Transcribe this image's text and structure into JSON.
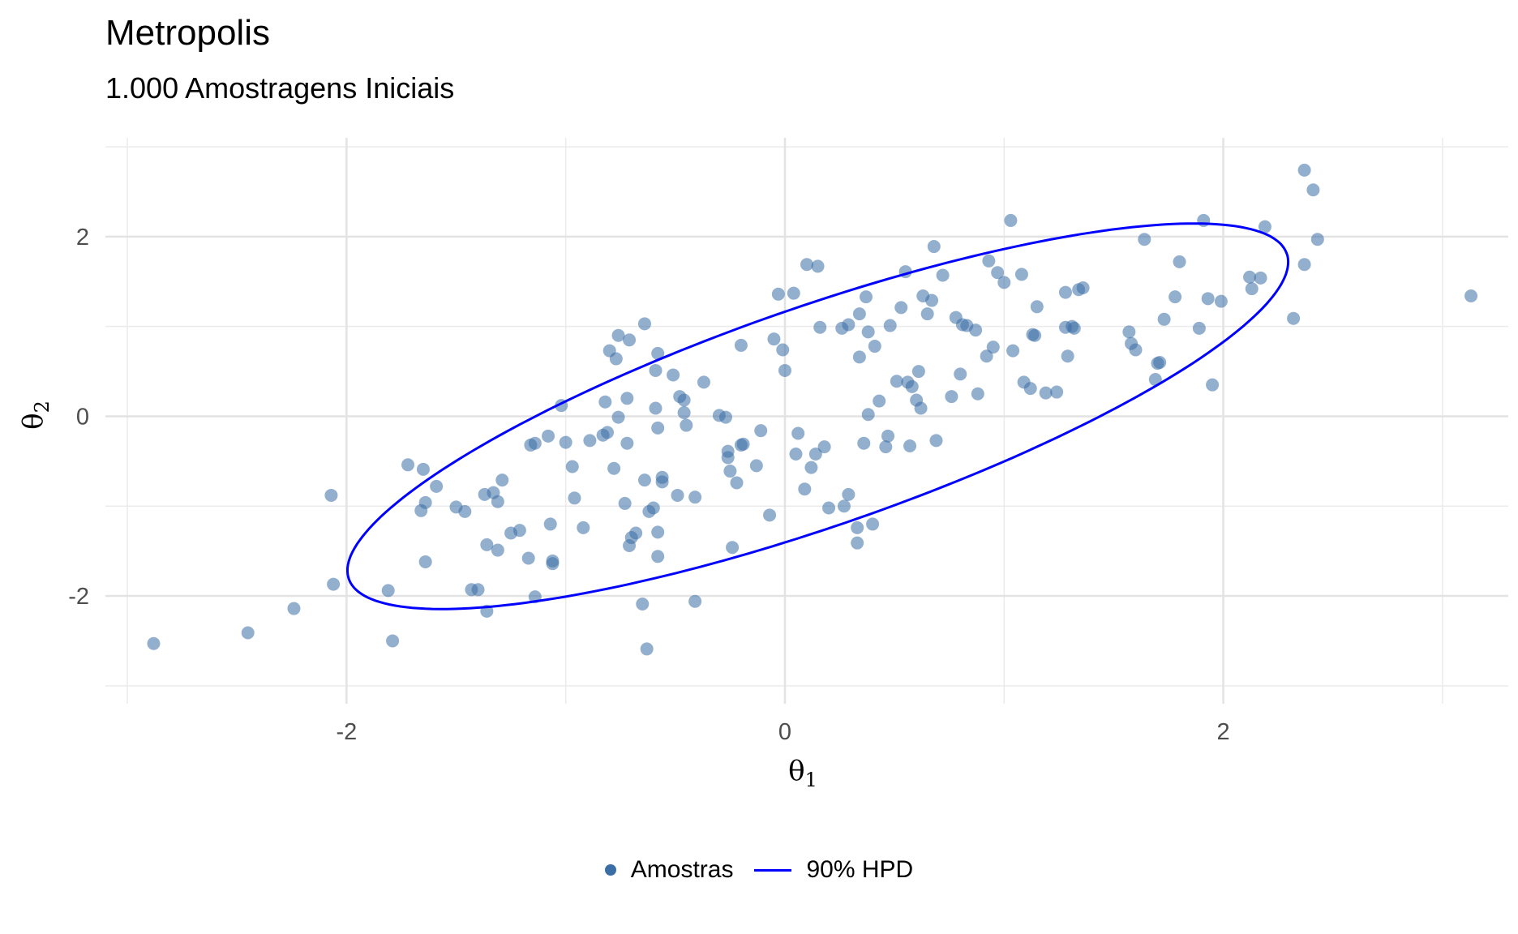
{
  "chart_data": {
    "type": "scatter",
    "title": "Metropolis",
    "subtitle": "1.000 Amostragens Iniciais",
    "xlabel": "θ",
    "xlabel_sub": "1",
    "ylabel": "θ",
    "ylabel_sub": "2",
    "xlim": [
      -3.1,
      3.3
    ],
    "ylim": [
      -3.2,
      3.1
    ],
    "x_ticks": [
      -2,
      0,
      2
    ],
    "x_tick_labels": [
      "-2",
      "0",
      "2"
    ],
    "y_ticks": [
      -2,
      0,
      2
    ],
    "y_tick_labels": [
      "-2",
      "0",
      "2"
    ],
    "grid": true,
    "legend_position": "bottom",
    "legend": [
      {
        "name": "Amostras",
        "kind": "point",
        "color": "#3a6ea5"
      },
      {
        "name": "90% HPD",
        "kind": "line",
        "color": "#0000ff"
      }
    ],
    "series": [
      {
        "name": "Amostras",
        "color": "#3a6ea5",
        "points": [
          [
            -2.88,
            -2.53
          ],
          [
            -2.45,
            -2.41
          ],
          [
            -2.24,
            -2.14
          ],
          [
            -2.07,
            -0.88
          ],
          [
            -2.06,
            -1.87
          ],
          [
            -1.81,
            -1.94
          ],
          [
            -1.79,
            -2.5
          ],
          [
            -1.72,
            -0.54
          ],
          [
            -1.66,
            -1.05
          ],
          [
            -1.65,
            -0.59
          ],
          [
            -1.64,
            -0.96
          ],
          [
            -1.64,
            -1.62
          ],
          [
            -1.59,
            -0.78
          ],
          [
            -1.5,
            -1.01
          ],
          [
            -1.46,
            -1.06
          ],
          [
            -1.43,
            -1.93
          ],
          [
            -1.4,
            -1.93
          ],
          [
            -1.37,
            -0.87
          ],
          [
            -1.36,
            -1.43
          ],
          [
            -1.36,
            -2.17
          ],
          [
            -1.33,
            -0.85
          ],
          [
            -1.31,
            -0.95
          ],
          [
            -1.31,
            -1.49
          ],
          [
            -1.29,
            -0.71
          ],
          [
            -1.25,
            -1.3
          ],
          [
            -1.21,
            -1.27
          ],
          [
            -1.17,
            -1.58
          ],
          [
            -1.16,
            -0.32
          ],
          [
            -1.14,
            -0.3
          ],
          [
            -1.14,
            -2.01
          ],
          [
            -1.08,
            -0.22
          ],
          [
            -1.07,
            -1.2
          ],
          [
            -1.06,
            -1.61
          ],
          [
            -1.06,
            -1.64
          ],
          [
            -1.02,
            0.12
          ],
          [
            -1.0,
            -0.29
          ],
          [
            -0.97,
            -0.56
          ],
          [
            -0.96,
            -0.91
          ],
          [
            -0.92,
            -1.24
          ],
          [
            -0.89,
            -0.27
          ],
          [
            -0.83,
            -0.21
          ],
          [
            -0.82,
            0.16
          ],
          [
            -0.81,
            -0.18
          ],
          [
            -0.8,
            0.73
          ],
          [
            -0.78,
            -0.58
          ],
          [
            -0.77,
            0.64
          ],
          [
            -0.76,
            0.9
          ],
          [
            -0.76,
            -0.01
          ],
          [
            -0.73,
            -0.97
          ],
          [
            -0.72,
            -0.3
          ],
          [
            -0.71,
            0.85
          ],
          [
            -0.72,
            0.2
          ],
          [
            -0.71,
            -1.44
          ],
          [
            -0.7,
            -1.35
          ],
          [
            -0.68,
            -1.3
          ],
          [
            -0.65,
            -2.09
          ],
          [
            -0.64,
            1.03
          ],
          [
            -0.64,
            -0.71
          ],
          [
            -0.63,
            -2.59
          ],
          [
            -0.62,
            -1.06
          ],
          [
            -0.6,
            -1.02
          ],
          [
            -0.59,
            0.51
          ],
          [
            -0.59,
            0.09
          ],
          [
            -0.58,
            0.7
          ],
          [
            -0.58,
            -0.13
          ],
          [
            -0.58,
            -1.29
          ],
          [
            -0.58,
            -1.56
          ],
          [
            -0.56,
            -0.68
          ],
          [
            -0.56,
            -0.73
          ],
          [
            -0.51,
            0.46
          ],
          [
            -0.49,
            -0.88
          ],
          [
            -0.48,
            0.22
          ],
          [
            -0.46,
            0.18
          ],
          [
            -0.46,
            0.04
          ],
          [
            -0.45,
            -0.1
          ],
          [
            -0.41,
            -0.9
          ],
          [
            -0.41,
            -2.06
          ],
          [
            -0.37,
            0.38
          ],
          [
            -0.3,
            0.01
          ],
          [
            -0.27,
            -0.01
          ],
          [
            -0.26,
            -0.39
          ],
          [
            -0.26,
            -0.46
          ],
          [
            -0.25,
            -0.61
          ],
          [
            -0.24,
            -1.46
          ],
          [
            -0.22,
            -0.74
          ],
          [
            -0.2,
            0.79
          ],
          [
            -0.2,
            -0.32
          ],
          [
            -0.19,
            -0.31
          ],
          [
            -0.13,
            -0.55
          ],
          [
            -0.11,
            -0.16
          ],
          [
            -0.07,
            -1.1
          ],
          [
            -0.05,
            0.86
          ],
          [
            -0.03,
            1.36
          ],
          [
            -0.01,
            0.74
          ],
          [
            0.0,
            0.51
          ],
          [
            0.04,
            1.37
          ],
          [
            0.05,
            -0.42
          ],
          [
            0.06,
            -0.19
          ],
          [
            0.09,
            -0.81
          ],
          [
            0.1,
            1.69
          ],
          [
            0.12,
            -0.57
          ],
          [
            0.14,
            -0.42
          ],
          [
            0.15,
            1.67
          ],
          [
            0.16,
            0.99
          ],
          [
            0.18,
            -0.34
          ],
          [
            0.2,
            -1.02
          ],
          [
            0.26,
            0.98
          ],
          [
            0.27,
            -1.0
          ],
          [
            0.29,
            1.02
          ],
          [
            0.29,
            -0.87
          ],
          [
            0.33,
            -1.24
          ],
          [
            0.33,
            -1.41
          ],
          [
            0.34,
            1.14
          ],
          [
            0.34,
            0.66
          ],
          [
            0.36,
            -0.3
          ],
          [
            0.37,
            1.33
          ],
          [
            0.38,
            0.02
          ],
          [
            0.38,
            0.94
          ],
          [
            0.4,
            -1.2
          ],
          [
            0.41,
            0.78
          ],
          [
            0.43,
            0.17
          ],
          [
            0.46,
            -0.34
          ],
          [
            0.47,
            -0.22
          ],
          [
            0.48,
            1.01
          ],
          [
            0.51,
            0.39
          ],
          [
            0.53,
            1.21
          ],
          [
            0.55,
            1.61
          ],
          [
            0.56,
            0.38
          ],
          [
            0.57,
            -0.33
          ],
          [
            0.58,
            0.33
          ],
          [
            0.6,
            0.18
          ],
          [
            0.61,
            0.5
          ],
          [
            0.62,
            0.09
          ],
          [
            0.63,
            1.34
          ],
          [
            0.65,
            1.14
          ],
          [
            0.67,
            1.29
          ],
          [
            0.68,
            1.89
          ],
          [
            0.69,
            -0.27
          ],
          [
            0.72,
            1.57
          ],
          [
            0.76,
            0.22
          ],
          [
            0.78,
            1.1
          ],
          [
            0.8,
            0.47
          ],
          [
            0.81,
            1.02
          ],
          [
            0.83,
            1.01
          ],
          [
            0.87,
            0.96
          ],
          [
            0.88,
            0.25
          ],
          [
            0.92,
            0.67
          ],
          [
            0.93,
            1.73
          ],
          [
            0.95,
            0.77
          ],
          [
            0.97,
            1.6
          ],
          [
            1.0,
            1.49
          ],
          [
            1.03,
            2.18
          ],
          [
            1.04,
            0.73
          ],
          [
            1.08,
            1.58
          ],
          [
            1.09,
            0.38
          ],
          [
            1.12,
            0.31
          ],
          [
            1.13,
            0.91
          ],
          [
            1.14,
            0.9
          ],
          [
            1.15,
            1.22
          ],
          [
            1.19,
            0.26
          ],
          [
            1.24,
            0.27
          ],
          [
            1.28,
            1.38
          ],
          [
            1.28,
            0.99
          ],
          [
            1.29,
            0.67
          ],
          [
            1.31,
            1.0
          ],
          [
            1.32,
            0.98
          ],
          [
            1.34,
            1.41
          ],
          [
            1.36,
            1.43
          ],
          [
            1.57,
            0.94
          ],
          [
            1.58,
            0.81
          ],
          [
            1.6,
            0.74
          ],
          [
            1.64,
            1.97
          ],
          [
            1.69,
            0.41
          ],
          [
            1.7,
            0.59
          ],
          [
            1.71,
            0.6
          ],
          [
            1.73,
            1.08
          ],
          [
            1.78,
            1.33
          ],
          [
            1.8,
            1.72
          ],
          [
            1.89,
            0.98
          ],
          [
            1.91,
            2.18
          ],
          [
            1.93,
            1.31
          ],
          [
            1.95,
            0.35
          ],
          [
            1.99,
            1.28
          ],
          [
            2.12,
            1.55
          ],
          [
            2.13,
            1.42
          ],
          [
            2.17,
            1.54
          ],
          [
            2.19,
            2.11
          ],
          [
            2.32,
            1.09
          ],
          [
            2.37,
            2.74
          ],
          [
            2.37,
            1.69
          ],
          [
            2.41,
            2.52
          ],
          [
            2.43,
            1.97
          ],
          [
            3.13,
            1.34
          ]
        ]
      }
    ],
    "hpd_ellipse": {
      "name": "90% HPD",
      "color": "#0000ff",
      "center": [
        0.15,
        0.0
      ],
      "cov": [
        [
          1.0,
          0.8
        ],
        [
          0.8,
          1.0
        ]
      ],
      "level": 0.9
    }
  }
}
